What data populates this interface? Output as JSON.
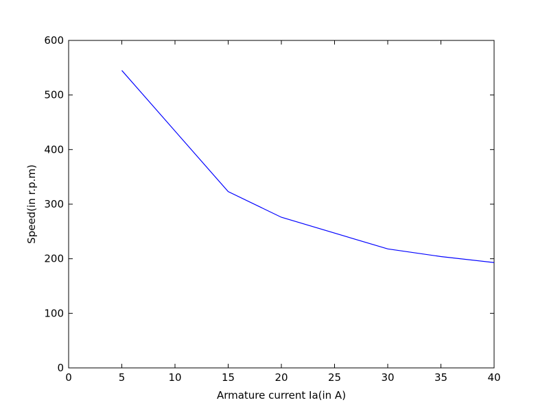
{
  "chart_data": {
    "type": "line",
    "x_label": "Armature current Ia(in A)",
    "y_label": "Speed(in r.p.m)",
    "x": [
      5,
      15,
      20,
      30,
      35,
      40
    ],
    "series": [
      {
        "color": "#0000ff",
        "values": [
          545,
          323,
          276,
          218,
          204,
          193
        ]
      }
    ],
    "xlim": [
      0,
      40
    ],
    "xticks": [
      0,
      5,
      10,
      15,
      20,
      25,
      30,
      35,
      40
    ],
    "ylim": [
      0,
      600
    ],
    "yticks": [
      0,
      100,
      200,
      300,
      400,
      500,
      600
    ],
    "grid": false
  }
}
